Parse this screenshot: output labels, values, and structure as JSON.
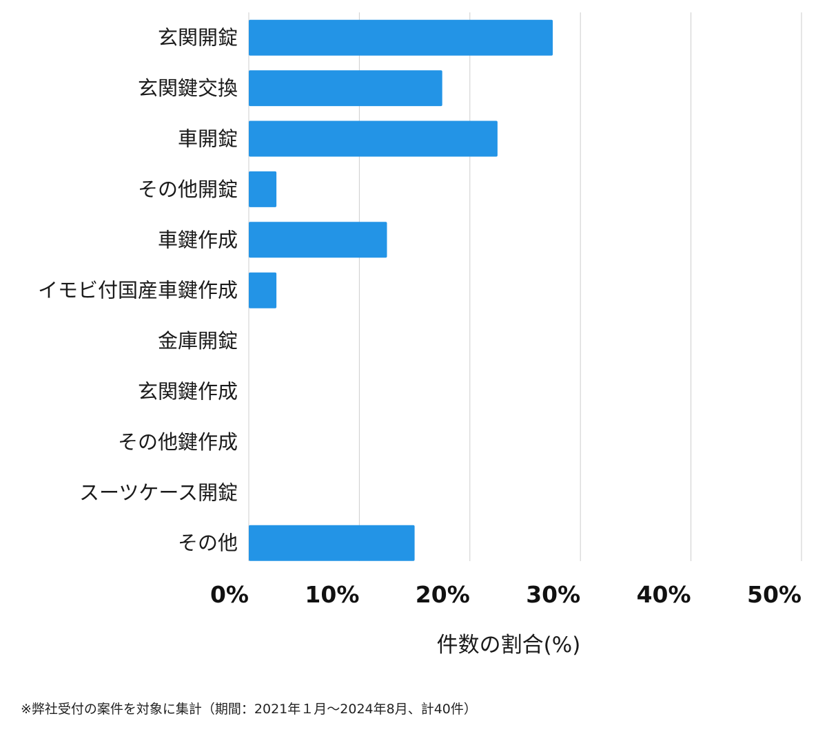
{
  "chart_data": {
    "type": "bar",
    "orientation": "horizontal",
    "categories": [
      "玄関開錠",
      "玄関鍵交換",
      "車開錠",
      "その他開錠",
      "車鍵作成",
      "イモビ付国産車鍵作成",
      "金庫開錠",
      "玄関鍵作成",
      "その他鍵作成",
      "スーツケース開錠",
      "その他"
    ],
    "values": [
      27.5,
      17.5,
      22.5,
      2.5,
      12.5,
      2.5,
      0,
      0,
      0,
      0,
      15
    ],
    "xlim": [
      0,
      50
    ],
    "xticks": [
      0,
      10,
      20,
      30,
      40,
      50
    ],
    "xtick_labels": [
      "0%",
      "10%",
      "20%",
      "30%",
      "40%",
      "50%"
    ],
    "xlabel": "件数の割合(%)",
    "ylabel": "",
    "title": "",
    "grid": "vertical",
    "bar_color": "#2394E6",
    "grid_color": "#cccccc"
  },
  "footnote": "※弊社受付の案件を対象に集計（期間：2021年１月〜2024年8月、計40件）"
}
